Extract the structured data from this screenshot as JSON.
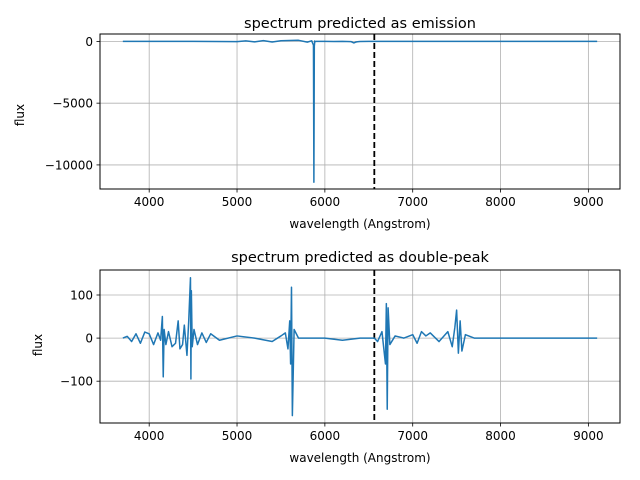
{
  "chart_data": [
    {
      "type": "line",
      "title": "spectrum predicted as emission",
      "xlabel": "wavelength (Angstrom)",
      "ylabel": "flux",
      "xlim": [
        3440,
        9360
      ],
      "ylim": [
        -11950,
        600
      ],
      "xticks": [
        4000,
        5000,
        6000,
        7000,
        8000,
        9000
      ],
      "yticks": [
        0,
        -5000,
        -10000
      ],
      "ytick_labels": [
        "0",
        "−5000",
        "−10000"
      ],
      "grid": true,
      "line_color": "#1f77b4",
      "vline": {
        "x": 6563,
        "style": "dashed",
        "color": "#000000"
      },
      "series": [
        {
          "x": [
            3700,
            4000,
            4500,
            5000,
            5100,
            5200,
            5300,
            5400,
            5500,
            5600,
            5700,
            5800,
            5850,
            5870,
            5875,
            5880,
            5885,
            5890,
            5900,
            6000,
            6100,
            6200,
            6300,
            6330,
            6350,
            6370,
            6400,
            6500,
            6563,
            6600,
            7000,
            7500,
            8000,
            8500,
            9000,
            9100
          ],
          "y": [
            0,
            0,
            0,
            -20,
            40,
            -40,
            60,
            -50,
            50,
            70,
            90,
            -60,
            50,
            -300,
            -11400,
            -400,
            30,
            -20,
            0,
            0,
            -10,
            0,
            -20,
            -120,
            -60,
            -30,
            -10,
            0,
            0,
            0,
            0,
            0,
            0,
            0,
            0,
            0
          ]
        }
      ]
    },
    {
      "type": "line",
      "title": "spectrum predicted as double-peak",
      "xlabel": "wavelength (Angstrom)",
      "ylabel": "flux",
      "xlim": [
        3440,
        9360
      ],
      "ylim": [
        -197,
        158
      ],
      "xticks": [
        4000,
        5000,
        6000,
        7000,
        8000,
        9000
      ],
      "yticks": [
        100,
        0,
        -100
      ],
      "ytick_labels": [
        "100",
        "0",
        "−100"
      ],
      "grid": true,
      "line_color": "#1f77b4",
      "vline": {
        "x": 6563,
        "style": "dashed",
        "color": "#000000"
      },
      "series": [
        {
          "x": [
            3700,
            3750,
            3800,
            3850,
            3900,
            3950,
            4000,
            4050,
            4100,
            4130,
            4150,
            4160,
            4170,
            4190,
            4220,
            4260,
            4300,
            4330,
            4350,
            4380,
            4400,
            4430,
            4450,
            4470,
            4475,
            4480,
            4490,
            4510,
            4550,
            4600,
            4650,
            4700,
            4800,
            5000,
            5200,
            5400,
            5500,
            5550,
            5580,
            5600,
            5610,
            5620,
            5630,
            5650,
            5700,
            5800,
            6000,
            6200,
            6400,
            6563,
            6600,
            6650,
            6690,
            6700,
            6710,
            6720,
            6740,
            6800,
            6900,
            7000,
            7050,
            7100,
            7150,
            7200,
            7300,
            7400,
            7450,
            7480,
            7500,
            7520,
            7540,
            7560,
            7600,
            7700,
            8000,
            8500,
            9000,
            9100
          ],
          "y": [
            0,
            4,
            -8,
            10,
            -12,
            14,
            10,
            -15,
            12,
            -5,
            50,
            -90,
            20,
            -15,
            15,
            -20,
            -12,
            40,
            -25,
            -15,
            30,
            -40,
            40,
            140,
            -95,
            110,
            -20,
            20,
            -15,
            12,
            -10,
            10,
            -5,
            5,
            0,
            -8,
            5,
            12,
            -25,
            40,
            -60,
            118,
            -180,
            20,
            0,
            0,
            0,
            -5,
            0,
            0,
            -8,
            15,
            -60,
            80,
            -165,
            70,
            -15,
            5,
            0,
            8,
            -12,
            15,
            5,
            12,
            -8,
            15,
            -20,
            25,
            65,
            -35,
            40,
            -30,
            8,
            0,
            0,
            0,
            0,
            0
          ]
        }
      ]
    }
  ]
}
